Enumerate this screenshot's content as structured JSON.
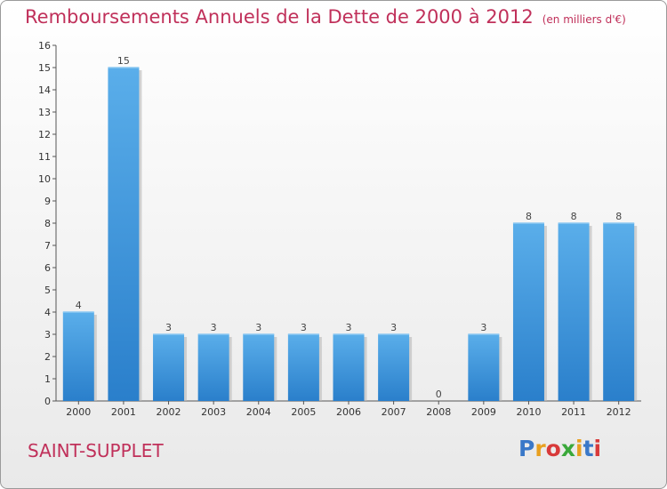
{
  "title": "Remboursements Annuels de la Dette de 2000 à 2012",
  "unit": "(en milliers d'€)",
  "commune": "SAINT-SUPPLET",
  "logo": {
    "letters": [
      "P",
      "r",
      "o",
      "x",
      "i",
      "t",
      "i"
    ],
    "colors": [
      "#3a78c8",
      "#e8a020",
      "#d83a3a",
      "#3aa83a",
      "#e8a020",
      "#3a78c8",
      "#d83a3a"
    ]
  },
  "chart_data": {
    "type": "bar",
    "categories": [
      "2000",
      "2001",
      "2002",
      "2003",
      "2004",
      "2005",
      "2006",
      "2007",
      "2008",
      "2009",
      "2010",
      "2011",
      "2012"
    ],
    "values": [
      4,
      15,
      3,
      3,
      3,
      3,
      3,
      3,
      0,
      3,
      8,
      8,
      8
    ],
    "value_labels": [
      "4",
      "15",
      "3",
      "3",
      "3",
      "3",
      "3",
      "3",
      "0",
      "3",
      "8",
      "8",
      "8"
    ],
    "ylim": [
      0,
      16
    ],
    "yticks": [
      0,
      1,
      2,
      3,
      4,
      5,
      6,
      7,
      8,
      9,
      10,
      11,
      12,
      13,
      14,
      15,
      16
    ],
    "title": "Remboursements Annuels de la Dette de 2000 à 2012",
    "xlabel": "",
    "ylabel": "",
    "bar_color": "#3d95dc",
    "grid": false
  }
}
